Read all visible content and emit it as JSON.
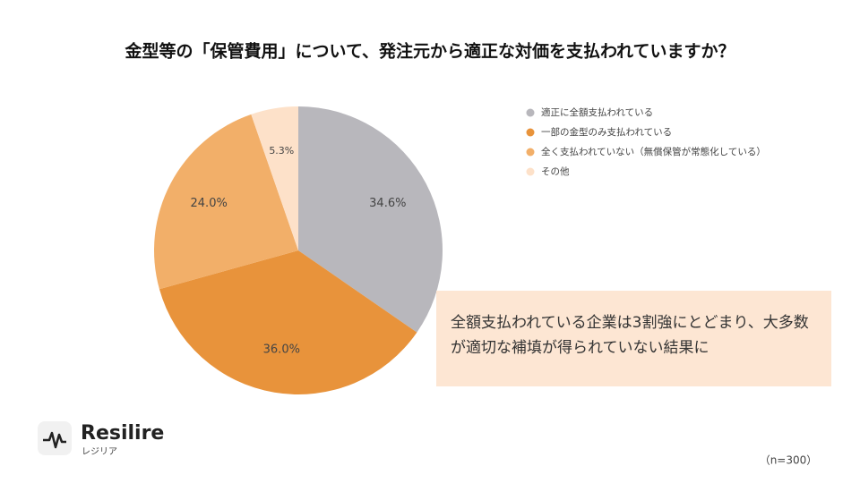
{
  "chart_data": {
    "type": "pie",
    "title": "金型等の「保管費用」について、発注元から適正な対価を支払われていますか？",
    "categories": [
      "適正に全額支払われている",
      "一部の金型のみ支払われている",
      "全く支払われていない（無償保管が常態化している）",
      "その他"
    ],
    "values": [
      34.6,
      36.0,
      24.0,
      5.3
    ],
    "value_labels": [
      "34.6%",
      "36.0%",
      "24.0%",
      "5.3%"
    ],
    "colors": [
      "#b8b7bc",
      "#e8933b",
      "#f2af69",
      "#fde1c9"
    ]
  },
  "callout": "全額支払われている企業は3割強にとどまり、大多数が適切な補填が得られていない結果に",
  "logo": {
    "name": "Resilire",
    "sub": "レジリア"
  },
  "note": "（n=300）"
}
